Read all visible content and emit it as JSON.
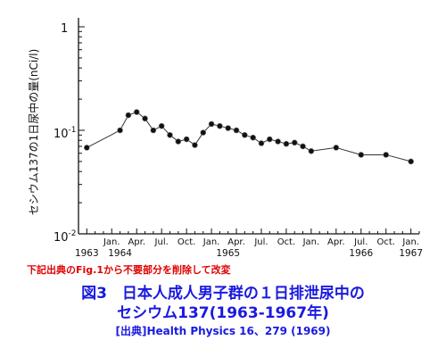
{
  "chart_data": {
    "type": "line",
    "y_scale": "log",
    "ylim": [
      0.01,
      1
    ],
    "y_tick_labels": [
      "1",
      "10^-1",
      "10^-2"
    ],
    "ylabel": "セシウム137の1日尿中の量(nCi/l)",
    "x_tick_labels": [
      {
        "month": "1963"
      },
      {
        "month": "Jan."
      },
      {
        "month": "Apr."
      },
      {
        "month": "Jul."
      },
      {
        "month": "Oct."
      },
      {
        "month": "Jan."
      },
      {
        "month": "Apr."
      },
      {
        "month": "Jul."
      },
      {
        "month": "Oct."
      },
      {
        "month": "Jan."
      },
      {
        "month": "Apr."
      },
      {
        "month": "Jul."
      },
      {
        "month": "Oct."
      },
      {
        "month": "Jan."
      }
    ],
    "year_labels": [
      "1963",
      "1964",
      "1965",
      "1966",
      "1967"
    ],
    "series": [
      {
        "x": [
          "1963-10",
          "1964-02",
          "1964-03",
          "1964-04",
          "1964-05",
          "1964-06",
          "1964-07",
          "1964-08",
          "1964-09",
          "1964-10",
          "1964-11",
          "1964-12",
          "1965-01",
          "1965-02",
          "1965-03",
          "1965-04",
          "1965-05",
          "1965-06",
          "1965-07",
          "1965-08",
          "1965-09",
          "1965-10",
          "1965-11",
          "1965-12",
          "1966-01",
          "1966-04",
          "1966-07",
          "1966-10",
          "1967-01"
        ],
        "values": [
          0.068,
          0.1,
          0.14,
          0.15,
          0.13,
          0.1,
          0.11,
          0.09,
          0.078,
          0.082,
          0.072,
          0.095,
          0.115,
          0.11,
          0.105,
          0.1,
          0.09,
          0.085,
          0.075,
          0.082,
          0.078,
          0.074,
          0.076,
          0.07,
          0.063,
          0.068,
          0.058,
          0.058,
          0.05
        ]
      }
    ]
  },
  "note": "下記出典のFig.1から不要部分を削除して改変",
  "figure_title": {
    "line1": "図3　日本人成人男子群の１日排泄尿中の",
    "line2": "セシウム137(1963-1967年)"
  },
  "source": "[出典]Health Physics 16、279 (1969)"
}
